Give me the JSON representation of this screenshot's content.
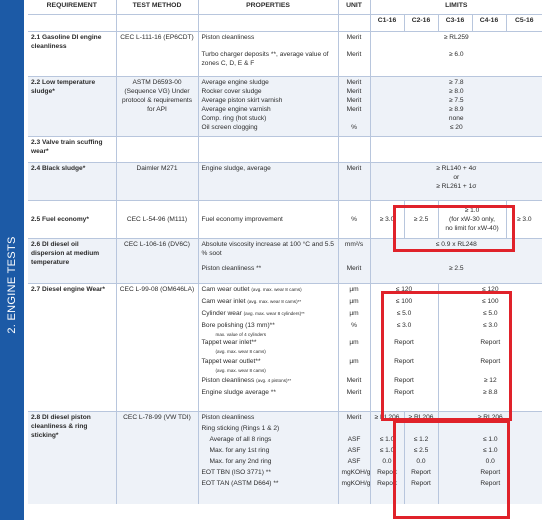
{
  "side_label": "2. ENGINE TESTS",
  "header": {
    "requirement": "REQUIREMENT",
    "test_method": "TEST METHOD",
    "properties": "PROPERTIES",
    "unit": "UNIT",
    "limits": "LIMITS",
    "classes": [
      "C1-16",
      "C2-16",
      "C3-16",
      "C4-16",
      "C5-16"
    ]
  },
  "rows": {
    "r1": {
      "num": "2.1",
      "req": "Gasoline DI engine cleanliness",
      "method": "CEC L-111-16 (EP6CDT)",
      "props": [
        "Piston cleanliness",
        "Turbo charger deposits **, average value of zones C, D, E & F"
      ],
      "units": [
        "Merit",
        "Merit"
      ],
      "limits": [
        "≥ RL259",
        "≥ 6.0"
      ]
    },
    "r2": {
      "num": "2.2",
      "req": "Low temperature sludge*",
      "method": "ASTM D6593-00 (Sequence VG) Under protocol & requirements for API",
      "props": [
        "Average engine sludge",
        "Rocker cover sludge",
        "Average piston skirt varnish",
        "Average engine varnish",
        "Comp. ring (hot stuck)",
        "Oil screen clogging"
      ],
      "units": [
        "Merit",
        "Merit",
        "Merit",
        "Merit",
        "",
        "%"
      ],
      "limits": [
        "≥ 7.8",
        "≥ 8.0",
        "≥ 7.5",
        "≥ 8.9",
        "none",
        "≤ 20"
      ]
    },
    "r3": {
      "num": "2.3",
      "req": "Valve train scuffing wear*"
    },
    "r4": {
      "num": "2.4",
      "req": "Black sludge*",
      "method": "Daimler M271",
      "prop": "Engine sludge, average",
      "unit": "Merit",
      "limits": [
        "≥ RL140 + 4σ",
        "or",
        "≥ RL261 + 1σ"
      ]
    },
    "r5": {
      "num": "2.5",
      "req": "Fuel economy*",
      "method": "CEC L-54-96 (M111)",
      "prop": "Fuel economy improvement",
      "unit": "%",
      "c1": "≥ 3.0",
      "c2": "≥ 2.5",
      "c34": [
        "≥ 1.0",
        "(for xW-30 only,",
        "no limit for xW-40)"
      ],
      "c5": "≥ 3.0"
    },
    "r6": {
      "num": "2.6",
      "req": "DI diesel oil dispersion at medium temperature",
      "method": "CEC L-106-16 (DV6C)",
      "props": [
        "Absolute viscosity increase at 100 °C and 5.5 % soot",
        "Piston cleanliness **"
      ],
      "units": [
        "mm²/s",
        "Merit"
      ],
      "limits": [
        "≤ 0.9 x RL248",
        "≥ 2.5"
      ]
    },
    "r7": {
      "num": "2.7",
      "req": "Diesel engine Wear*",
      "method": "CEC L-99-08 (OM646LA)",
      "props": [
        "Cam wear outlet",
        "Cam wear inlet",
        "Cylinder wear",
        "Bore polishing (13 mm)**",
        "Tappet wear inlet**",
        "Tappet wear outlet**",
        "Piston cleanliness",
        "Engine sludge average **"
      ],
      "subs": [
        "(avg. max. wear 8 cams)",
        "(avg. max. wear 8 cams)**",
        "(avg. max. wear 8 cylinders)**",
        "max. value of 4 cylinders",
        "(avg. max. wear 8 cams)",
        "(avg. max. wear 8 cams)",
        "(avg. 4 pistons)**",
        ""
      ],
      "units": [
        "µm",
        "µm",
        "µm",
        "%",
        "µm",
        "µm",
        "Merit",
        "Merit"
      ],
      "c12": [
        "≤ 120",
        "≤ 100",
        "≤ 5.0",
        "≤ 3.0",
        "Report",
        "Report",
        "Report",
        "Report"
      ],
      "c345": [
        "≤ 120",
        "≤ 100",
        "≤ 5.0",
        "≤ 3.0",
        "Report",
        "Report",
        "≥ 12",
        "≥ 8.8"
      ]
    },
    "r8": {
      "num": "2.8",
      "req": "DI diesel piston cleanliness & ring sticking*",
      "method": "CEC L-78-99 (VW TDI)",
      "props": [
        "Piston cleanliness",
        "Ring sticking (Rings 1 & 2)",
        "Average of all 8 rings",
        "Max. for any 1st ring",
        "Max. for any 2nd ring",
        "EOT TBN (ISO 3771) **",
        "EOT TAN (ASTM D664) **"
      ],
      "units": [
        "Merit",
        "",
        "ASF",
        "ASF",
        "ASF",
        "mgKOH/g",
        "mgKOH/g"
      ],
      "c1": [
        "≥ RL206",
        "",
        "≤ 1.0",
        "≤ 1.0",
        "0.0",
        "Report",
        "Report"
      ],
      "c2": [
        "≥ RL206",
        "",
        "≤ 1.2",
        "≤ 2.5",
        "0.0",
        "Report",
        "Report"
      ],
      "c345": [
        "≥ RL206",
        "",
        "≤ 1.0",
        "≤ 1.0",
        "0.0",
        "Report",
        "Report"
      ]
    }
  }
}
